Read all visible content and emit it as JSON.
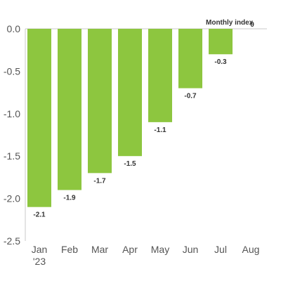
{
  "chart_data": {
    "type": "bar",
    "categories": [
      "Jan",
      "Feb",
      "Mar",
      "Apr",
      "May",
      "Jun",
      "Jul",
      "Aug"
    ],
    "category_sublabels": [
      "'23",
      "",
      "",
      "",
      "",
      "",
      "",
      ""
    ],
    "series": [
      {
        "name": "Monthly index",
        "values": [
          -2.1,
          -1.9,
          -1.7,
          -1.5,
          -1.1,
          -0.7,
          -0.3,
          0
        ]
      }
    ],
    "data_labels": [
      "-2.1",
      "-1.9",
      "-1.7",
      "-1.5",
      "-1.1",
      "-0.7",
      "-0.3",
      "0"
    ],
    "ylim": [
      -2.5,
      0.0
    ],
    "yticks": [
      0.0,
      -0.5,
      -1.0,
      -1.5,
      -2.0,
      -2.5
    ],
    "ytick_labels": [
      "0.0",
      "-0.5",
      "-1.0",
      "-1.5",
      "-2.0",
      "-2.5"
    ],
    "grid": false,
    "colors": {
      "bar": "#8dc63f",
      "axis": "#c8c8c8"
    }
  }
}
